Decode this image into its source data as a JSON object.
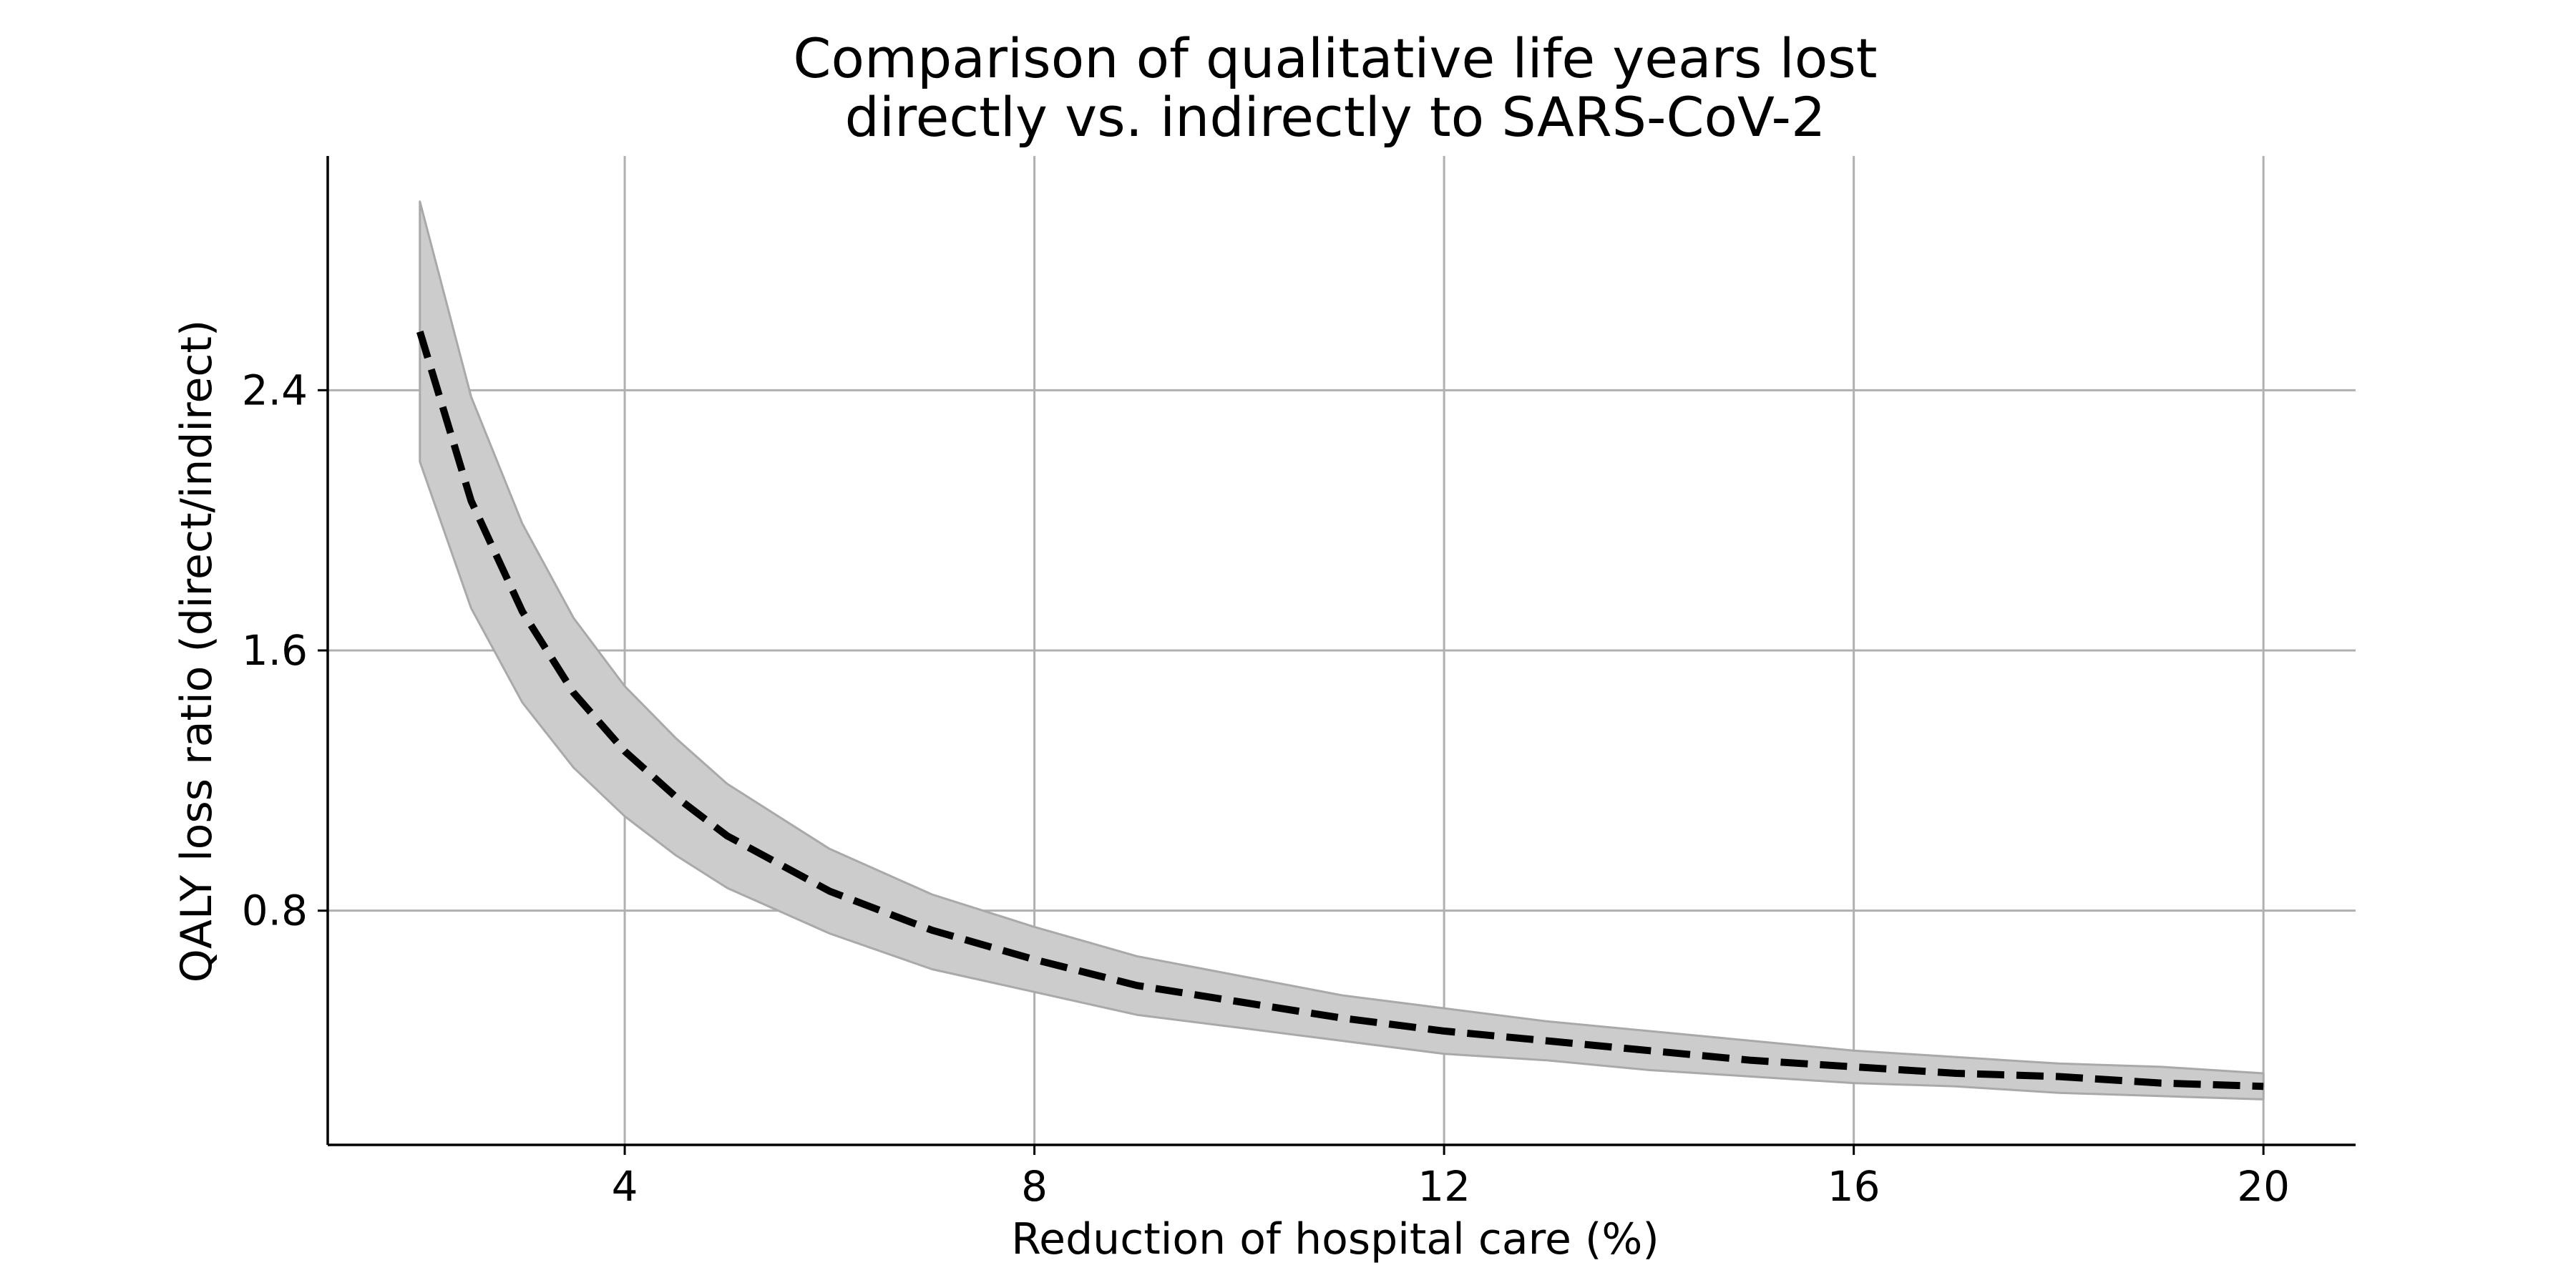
{
  "chart_data": {
    "type": "line",
    "title": [
      "Comparison of qualitative life years lost",
      "directly vs. indirectly to SARS-CoV-2"
    ],
    "xlabel": "Reduction of hospital care (%)",
    "ylabel": "QALY loss ratio (direct/indirect)",
    "xlim": [
      1.1,
      20.9
    ],
    "ylim": [
      0.08,
      3.12
    ],
    "xticks": [
      4,
      8,
      12,
      16,
      20
    ],
    "yticks": [
      0.8,
      1.6,
      2.4
    ],
    "xtick_labels": [
      "4",
      "8",
      "12",
      "16",
      "20"
    ],
    "ytick_labels": [
      "0.8",
      "1.6",
      "2.4"
    ],
    "grid": true,
    "legend": "none",
    "colors": {
      "line": "#000000",
      "band_fill": "#cccccc",
      "band_edge": "#a9a9a9",
      "grid": "#b0b0b0",
      "axis": "#000000"
    },
    "series": [
      {
        "style": "dashed",
        "x": [
          2,
          2.5,
          3,
          3.5,
          4,
          4.5,
          5,
          6,
          7,
          8,
          9,
          10,
          11,
          12,
          13,
          14,
          15,
          16,
          17,
          18,
          19,
          20
        ],
        "y": [
          2.58,
          2.06,
          1.72,
          1.47,
          1.29,
          1.15,
          1.03,
          0.86,
          0.74,
          0.65,
          0.57,
          0.52,
          0.47,
          0.43,
          0.4,
          0.37,
          0.34,
          0.32,
          0.3,
          0.29,
          0.27,
          0.26
        ]
      }
    ],
    "band": {
      "x": [
        2,
        2.5,
        3,
        3.5,
        4,
        4.5,
        5,
        6,
        7,
        8,
        9,
        10,
        11,
        12,
        13,
        14,
        15,
        16,
        17,
        18,
        19,
        20
      ],
      "lower": [
        2.18,
        1.73,
        1.44,
        1.24,
        1.09,
        0.97,
        0.87,
        0.73,
        0.62,
        0.55,
        0.48,
        0.44,
        0.4,
        0.36,
        0.34,
        0.31,
        0.29,
        0.27,
        0.26,
        0.24,
        0.23,
        0.22
      ],
      "upper": [
        2.98,
        2.38,
        1.99,
        1.7,
        1.49,
        1.33,
        1.19,
        0.99,
        0.85,
        0.75,
        0.66,
        0.6,
        0.54,
        0.5,
        0.46,
        0.43,
        0.4,
        0.37,
        0.35,
        0.33,
        0.32,
        0.3
      ]
    }
  }
}
